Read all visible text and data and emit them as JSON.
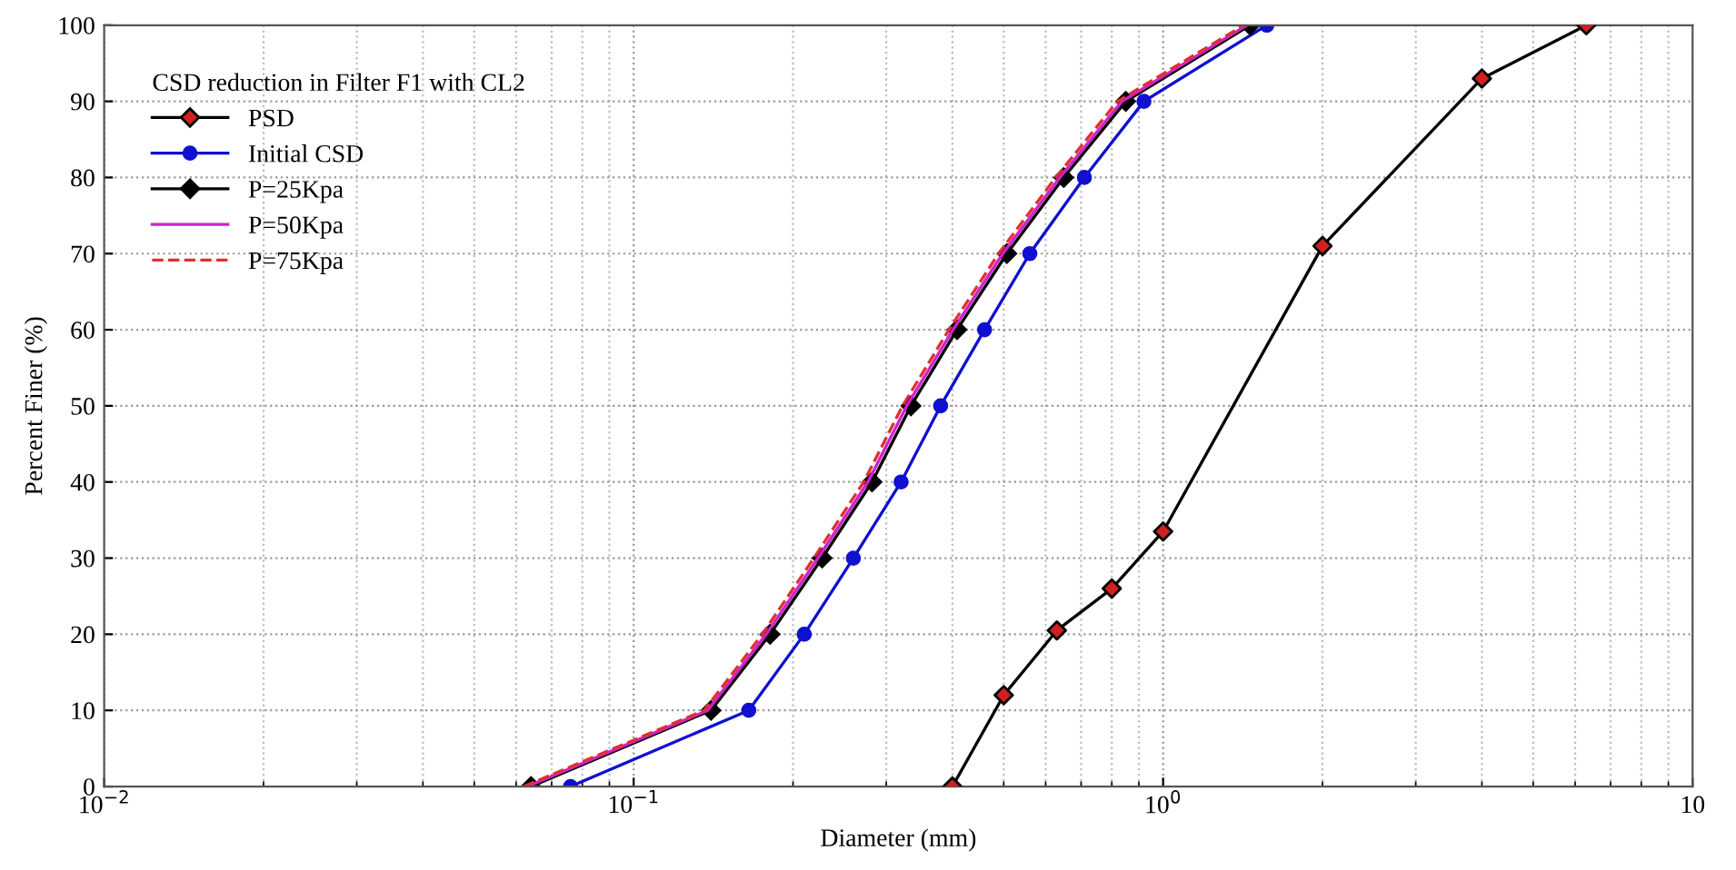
{
  "chart_data": {
    "type": "line",
    "xlabel": "Diameter (mm)",
    "ylabel": "Percent Finer (%)",
    "legend_title": "CSD reduction in Filter F1 with CL2",
    "legend": "top left",
    "grid": true,
    "log": "x",
    "xlim": [
      0.01,
      10
    ],
    "xticks": [
      {
        "value": 0.01,
        "label": "10$^{−2}$"
      },
      {
        "value": 0.1,
        "label": "10$^{−1}$"
      },
      {
        "value": 1,
        "label": "10$^{0}$"
      },
      10
    ],
    "ylim": [
      0,
      100
    ],
    "yticks": [
      0,
      10,
      20,
      30,
      40,
      50,
      60,
      70,
      80,
      90,
      100
    ],
    "series": [
      {
        "name": "PSD",
        "color": "#000000",
        "colors": [
          "#d02020",
          "#d02020",
          "#d02020",
          "#d02020",
          "#d02020",
          "#d02020",
          "#d02020",
          "#d02020"
        ],
        "marker": "diamond",
        "line_style": "solid",
        "x": [
          0.4,
          0.5,
          0.63,
          0.8,
          1.0,
          2.0,
          4.0,
          6.3
        ],
        "values": [
          0,
          12,
          20.5,
          26,
          33.5,
          71,
          93,
          100
        ]
      },
      {
        "name": "Initial CSD",
        "color": "#1010d0",
        "marker": "circle",
        "line_style": "solid",
        "x": [
          0.076,
          0.165,
          0.21,
          0.26,
          0.32,
          0.38,
          0.46,
          0.56,
          0.71,
          0.92,
          1.57
        ],
        "values": [
          0,
          10,
          20,
          30,
          40,
          50,
          60,
          70,
          80,
          90,
          100
        ]
      },
      {
        "name": "P=25Kpa",
        "color": "#000000",
        "marker": "diamond",
        "line_style": "solid",
        "x": [
          0.064,
          0.14,
          0.181,
          0.227,
          0.282,
          0.334,
          0.408,
          0.507,
          0.649,
          0.85,
          1.46
        ],
        "values": [
          0,
          10,
          20,
          30,
          40,
          50,
          60,
          70,
          80,
          90,
          100
        ]
      },
      {
        "name": "P=50Kpa",
        "color": "#d020d0",
        "marker": "none",
        "line_style": "solid",
        "x": [
          0.063,
          0.138,
          0.178,
          0.223,
          0.277,
          0.328,
          0.401,
          0.498,
          0.638,
          0.836,
          1.44
        ],
        "values": [
          0,
          10,
          20,
          30,
          40,
          50,
          60,
          70,
          80,
          90,
          100
        ]
      },
      {
        "name": "P=75Kpa",
        "color": "#e03030",
        "marker": "none",
        "line_style": "dashed",
        "x": [
          0.062,
          0.136,
          0.175,
          0.219,
          0.272,
          0.322,
          0.394,
          0.489,
          0.627,
          0.82,
          1.42
        ],
        "values": [
          0,
          10,
          20,
          30,
          40,
          50,
          60,
          70,
          80,
          90,
          100
        ]
      }
    ]
  }
}
